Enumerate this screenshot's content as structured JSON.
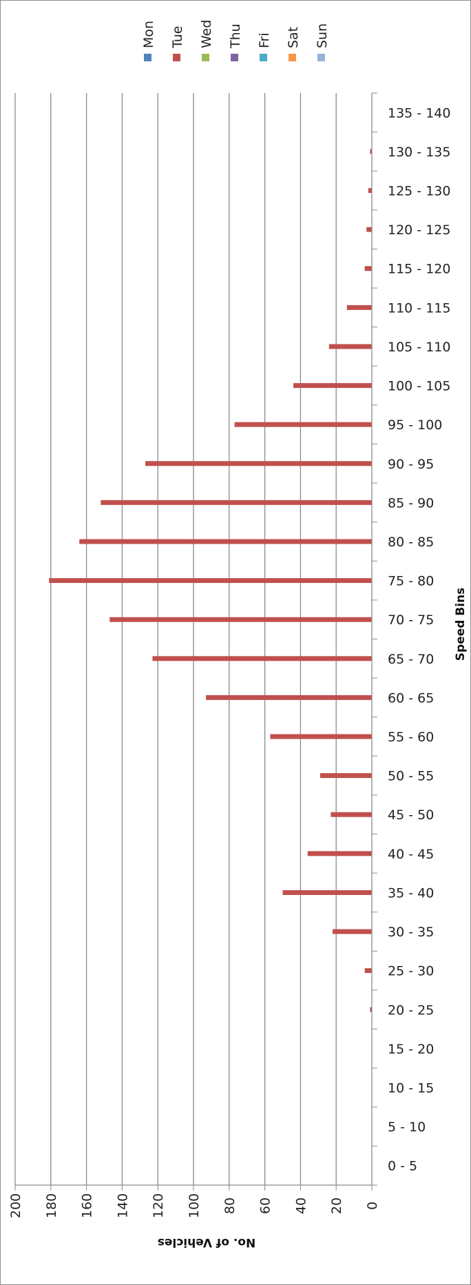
{
  "chart_data": {
    "type": "bar",
    "orientation": "horizontal",
    "xlabel": "Speed Bins",
    "ylabel": "No. of Vehicles",
    "ylim": [
      0,
      200
    ],
    "yticks": [
      0,
      20,
      40,
      60,
      80,
      100,
      120,
      140,
      160,
      180,
      200
    ],
    "grid": true,
    "legend_position": "top",
    "categories": [
      "0 - 5",
      "5 - 10",
      "10 - 15",
      "15 - 20",
      "20 - 25",
      "25 - 30",
      "30 - 35",
      "35 - 40",
      "40 - 45",
      "45 - 50",
      "50 - 55",
      "55 - 60",
      "60 - 65",
      "65 - 70",
      "70 - 75",
      "75 - 80",
      "80 - 85",
      "85 - 90",
      "90 - 95",
      "95 - 100",
      "100 - 105",
      "105 - 110",
      "110 - 115",
      "115 - 120",
      "120 - 125",
      "125 - 130",
      "130 - 135",
      "135 - 140"
    ],
    "series": [
      {
        "name": "Mon",
        "color": "#4f81bd",
        "values": [
          0,
          0,
          0,
          0,
          0,
          0,
          0,
          0,
          0,
          0,
          0,
          0,
          0,
          0,
          0,
          0,
          0,
          0,
          0,
          0,
          0,
          0,
          0,
          0,
          0,
          0,
          0,
          0
        ]
      },
      {
        "name": "Tue",
        "color": "#c0504d",
        "values": [
          0,
          0,
          0,
          0,
          1,
          4,
          22,
          50,
          36,
          23,
          29,
          57,
          93,
          123,
          147,
          181,
          164,
          152,
          127,
          77,
          44,
          24,
          14,
          4,
          3,
          2,
          1,
          0
        ]
      },
      {
        "name": "Wed",
        "color": "#9bbb59",
        "values": [
          0,
          0,
          0,
          0,
          0,
          0,
          0,
          0,
          0,
          0,
          0,
          0,
          0,
          0,
          0,
          0,
          0,
          0,
          0,
          0,
          0,
          0,
          0,
          0,
          0,
          0,
          0,
          0
        ]
      },
      {
        "name": "Thu",
        "color": "#8064a2",
        "values": [
          0,
          0,
          0,
          0,
          0,
          0,
          0,
          0,
          0,
          0,
          0,
          0,
          0,
          0,
          0,
          0,
          0,
          0,
          0,
          0,
          0,
          0,
          0,
          0,
          0,
          0,
          0,
          0
        ]
      },
      {
        "name": "Fri",
        "color": "#4bacc6",
        "values": [
          0,
          0,
          0,
          0,
          0,
          0,
          0,
          0,
          0,
          0,
          0,
          0,
          0,
          0,
          0,
          0,
          0,
          0,
          0,
          0,
          0,
          0,
          0,
          0,
          0,
          0,
          0,
          0
        ]
      },
      {
        "name": "Sat",
        "color": "#f79646",
        "values": [
          0,
          0,
          0,
          0,
          0,
          0,
          0,
          0,
          0,
          0,
          0,
          0,
          0,
          0,
          0,
          0,
          0,
          0,
          0,
          0,
          0,
          0,
          0,
          0,
          0,
          0,
          0,
          0
        ]
      },
      {
        "name": "Sun",
        "color": "#95b3d7",
        "values": [
          0,
          0,
          0,
          0,
          0,
          0,
          0,
          0,
          0,
          0,
          0,
          0,
          0,
          0,
          0,
          0,
          0,
          0,
          0,
          0,
          0,
          0,
          0,
          0,
          0,
          0,
          0,
          0
        ]
      }
    ]
  }
}
